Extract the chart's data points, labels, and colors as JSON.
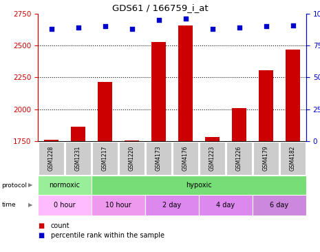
{
  "title": "GDS61 / 166759_i_at",
  "samples": [
    "GSM1228",
    "GSM1231",
    "GSM1217",
    "GSM1220",
    "GSM4173",
    "GSM4176",
    "GSM1223",
    "GSM1226",
    "GSM4179",
    "GSM4182"
  ],
  "counts": [
    1762,
    1862,
    2215,
    1758,
    2530,
    2660,
    1782,
    2010,
    2305,
    2470
  ],
  "percentile_ranks": [
    88,
    89,
    90,
    88,
    95,
    96,
    88,
    89,
    90,
    91
  ],
  "y_min": 1750,
  "y_max": 2750,
  "y_ticks": [
    1750,
    2000,
    2250,
    2500,
    2750
  ],
  "bar_color": "#cc0000",
  "dot_color": "#0000cc",
  "bar_bottom": 1750,
  "tick_color_left": "#cc0000",
  "tick_color_right": "#0000cc",
  "sample_box_color": "#cccccc",
  "normoxic_color": "#99ee99",
  "hypoxic_color": "#77dd77",
  "time_color_light": "#ffaaff",
  "time_color_dark": "#ee88ee",
  "time_spans_data": [
    [
      0,
      2,
      "0 hour"
    ],
    [
      2,
      4,
      "10 hour"
    ],
    [
      4,
      6,
      "2 day"
    ],
    [
      6,
      8,
      "4 day"
    ],
    [
      8,
      10,
      "6 day"
    ]
  ],
  "time_colors": [
    "#ffbbff",
    "#ee99ee",
    "#dd88ee",
    "#dd88ee",
    "#cc88dd"
  ],
  "grid_yticks": [
    2000,
    2250,
    2500
  ]
}
